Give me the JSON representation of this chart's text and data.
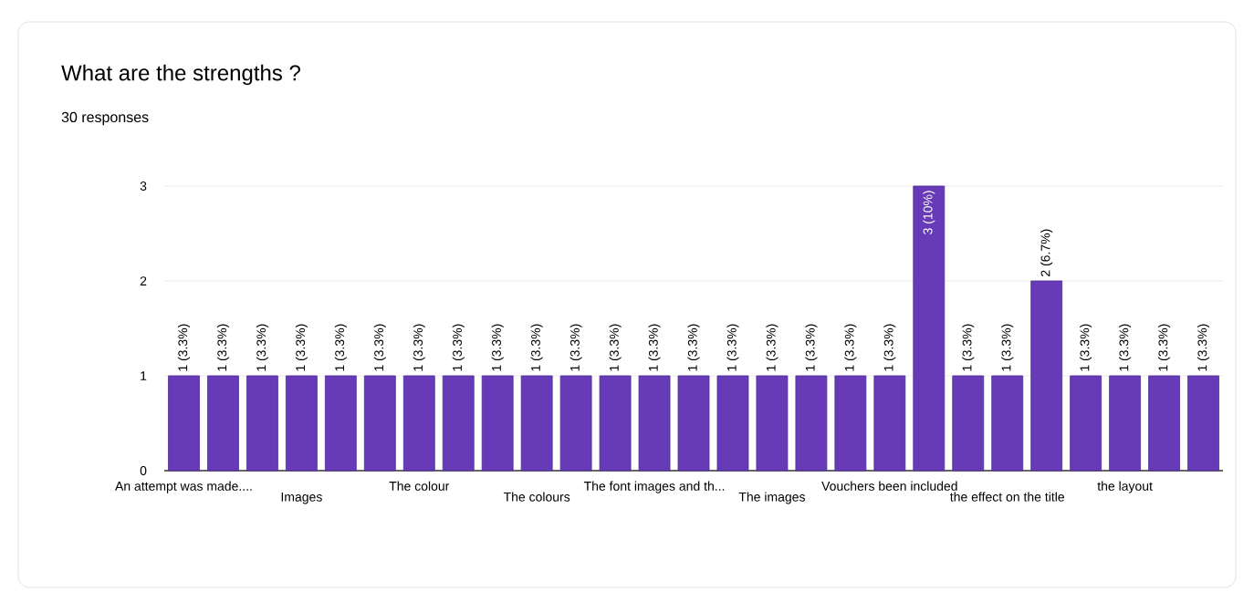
{
  "chart_data": {
    "type": "bar",
    "title": "What are the strengths ?",
    "subtitle": "30 responses",
    "categories": [
      "An attempt was made....",
      null,
      null,
      "Images",
      null,
      null,
      "The colour",
      null,
      null,
      "The colours",
      null,
      null,
      "The font images and th...",
      null,
      null,
      "The images",
      null,
      null,
      "Vouchers been included",
      null,
      null,
      "the effect on the title",
      null,
      null,
      "the layout",
      null,
      null
    ],
    "values": [
      1,
      1,
      1,
      1,
      1,
      1,
      1,
      1,
      1,
      1,
      1,
      1,
      1,
      1,
      1,
      1,
      1,
      1,
      1,
      3,
      1,
      1,
      2,
      1,
      1,
      1,
      1
    ],
    "value_labels": [
      "1 (3.3%)",
      "1 (3.3%)",
      "1 (3.3%)",
      "1 (3.3%)",
      "1 (3.3%)",
      "1 (3.3%)",
      "1 (3.3%)",
      "1 (3.3%)",
      "1 (3.3%)",
      "1 (3.3%)",
      "1 (3.3%)",
      "1 (3.3%)",
      "1 (3.3%)",
      "1 (3.3%)",
      "1 (3.3%)",
      "1 (3.3%)",
      "1 (3.3%)",
      "1 (3.3%)",
      "1 (3.3%)",
      "3 (10%)",
      "1 (3.3%)",
      "1 (3.3%)",
      "2 (6.7%)",
      "1 (3.3%)",
      "1 (3.3%)",
      "1 (3.3%)",
      "1 (3.3%)"
    ],
    "color": "#673ab7",
    "ylim": [
      0,
      3
    ],
    "yticks": [
      0,
      1,
      2,
      3
    ],
    "grid": "y"
  }
}
